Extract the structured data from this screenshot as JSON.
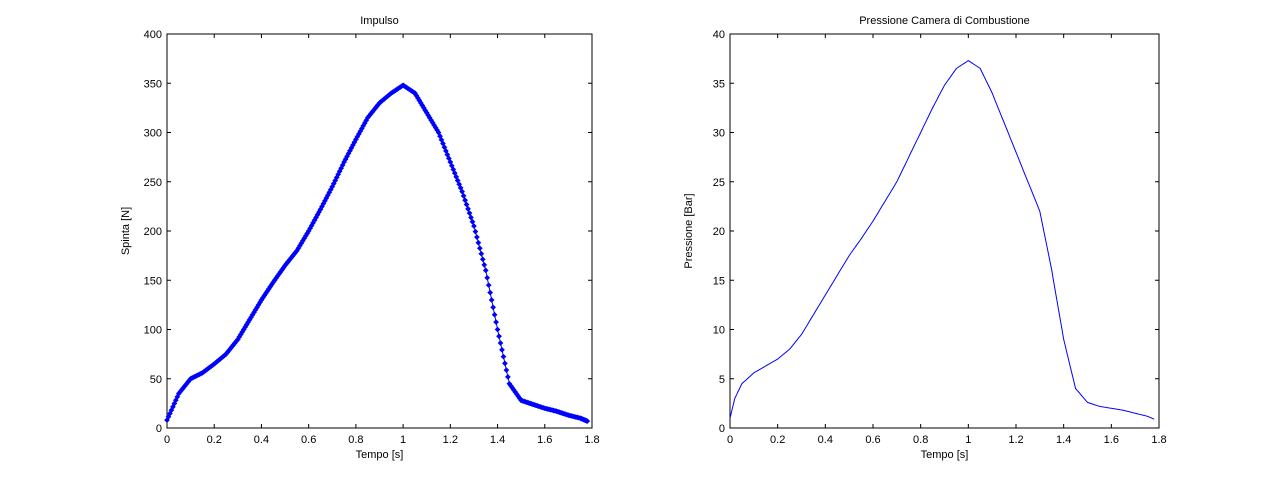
{
  "chart_data": [
    {
      "type": "scatter",
      "title": "Impulso",
      "xlabel": "Tempo [s]",
      "ylabel": "Spinta [N]",
      "xlim": [
        0,
        1.8
      ],
      "ylim": [
        0,
        400
      ],
      "xticks": [
        "0",
        "0.2",
        "0.4",
        "0.6",
        "0.8",
        "1",
        "1.2",
        "1.4",
        "1.6",
        "1.8"
      ],
      "yticks": [
        "0",
        "50",
        "100",
        "150",
        "200",
        "250",
        "300",
        "350",
        "400"
      ],
      "grid": false,
      "marker": "diamond",
      "color": "#0000ff",
      "series": [
        {
          "x": [
            0,
            0.05,
            0.1,
            0.15,
            0.2,
            0.25,
            0.3,
            0.35,
            0.4,
            0.45,
            0.5,
            0.55,
            0.6,
            0.65,
            0.7,
            0.75,
            0.8,
            0.85,
            0.9,
            0.95,
            1.0,
            1.05,
            1.1,
            1.15,
            1.2,
            1.25,
            1.3,
            1.35,
            1.4,
            1.45,
            1.5,
            1.55,
            1.6,
            1.65,
            1.7,
            1.75,
            1.78
          ],
          "y": [
            8,
            35,
            50,
            56,
            65,
            75,
            90,
            110,
            130,
            148,
            165,
            180,
            200,
            222,
            245,
            270,
            293,
            315,
            330,
            340,
            348,
            340,
            320,
            300,
            270,
            240,
            205,
            160,
            100,
            45,
            28,
            24,
            20,
            17,
            13,
            10,
            7
          ]
        }
      ]
    },
    {
      "type": "line",
      "title": "Pressione Camera di Combustione",
      "xlabel": "Tempo [s]",
      "ylabel": "Pressione [Bar]",
      "xlim": [
        0,
        1.8
      ],
      "ylim": [
        0,
        40
      ],
      "xticks": [
        "0",
        "0.2",
        "0.4",
        "0.6",
        "0.8",
        "1",
        "1.2",
        "1.4",
        "1.6",
        "1.8"
      ],
      "yticks": [
        "0",
        "5",
        "10",
        "15",
        "20",
        "25",
        "30",
        "35",
        "40"
      ],
      "grid": false,
      "color": "#0000ff",
      "series": [
        {
          "x": [
            0,
            0.02,
            0.05,
            0.1,
            0.15,
            0.2,
            0.25,
            0.3,
            0.35,
            0.4,
            0.45,
            0.5,
            0.55,
            0.6,
            0.65,
            0.7,
            0.75,
            0.8,
            0.85,
            0.9,
            0.95,
            1.0,
            1.05,
            1.1,
            1.15,
            1.2,
            1.25,
            1.3,
            1.35,
            1.4,
            1.45,
            1.5,
            1.55,
            1.6,
            1.65,
            1.7,
            1.75,
            1.78
          ],
          "y": [
            1,
            3,
            4.5,
            5.6,
            6.3,
            7,
            8,
            9.5,
            11.5,
            13.5,
            15.5,
            17.5,
            19.2,
            21,
            23,
            25,
            27.5,
            30,
            32.5,
            34.8,
            36.5,
            37.3,
            36.5,
            34,
            31,
            28,
            25,
            22,
            16,
            9,
            4,
            2.6,
            2.2,
            2,
            1.8,
            1.5,
            1.2,
            0.9
          ]
        }
      ]
    }
  ]
}
